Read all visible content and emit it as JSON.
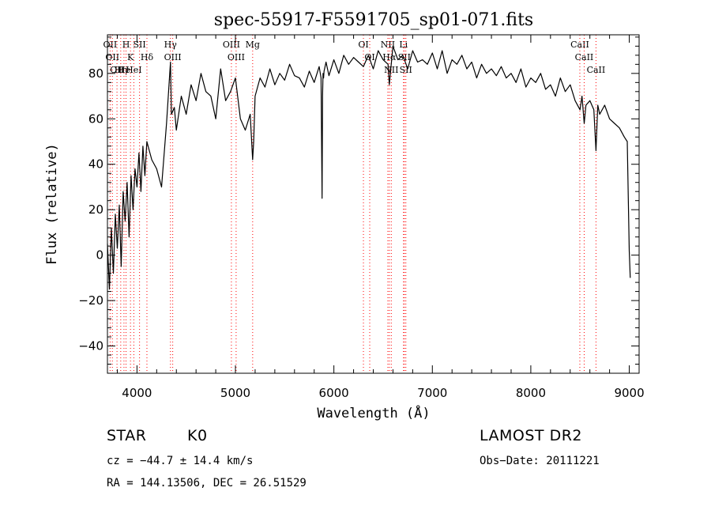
{
  "chart_data": {
    "type": "line",
    "title": "spec-55917-F5591705_sp01-071.fits",
    "xlabel": "Wavelength (Å)",
    "ylabel": "Flux (relative)",
    "xlim": [
      3700,
      9100
    ],
    "ylim": [
      -52,
      97
    ],
    "x_ticks": [
      {
        "v": 4000,
        "label": "4000"
      },
      {
        "v": 5000,
        "label": "5000"
      },
      {
        "v": 6000,
        "label": "6000"
      },
      {
        "v": 7000,
        "label": "7000"
      },
      {
        "v": 8000,
        "label": "8000"
      },
      {
        "v": 9000,
        "label": "9000"
      }
    ],
    "y_ticks": [
      {
        "v": -40,
        "label": "−40"
      },
      {
        "v": -20,
        "label": "−20"
      },
      {
        "v": 0,
        "label": "0"
      },
      {
        "v": 20,
        "label": "20"
      },
      {
        "v": 40,
        "label": "40"
      },
      {
        "v": 60,
        "label": "60"
      },
      {
        "v": 80,
        "label": "80"
      }
    ],
    "spectrum_color": "#000000",
    "line_marker_color": "#ff0000",
    "series": [
      {
        "x": [
          3700,
          3720,
          3740,
          3760,
          3780,
          3800,
          3820,
          3840,
          3860,
          3880,
          3900,
          3920,
          3940,
          3960,
          3980,
          4000,
          4020,
          4040,
          4060,
          4080,
          4100,
          4150,
          4200,
          4250,
          4300,
          4330,
          4340,
          4350,
          4380,
          4400,
          4450,
          4500,
          4550,
          4600,
          4650,
          4700,
          4750,
          4800,
          4850,
          4900,
          4950,
          5000,
          5050,
          5100,
          5150,
          5175,
          5185,
          5200,
          5250,
          5300,
          5350,
          5400,
          5450,
          5500,
          5550,
          5600,
          5650,
          5700,
          5750,
          5800,
          5850,
          5870,
          5880,
          5885,
          5890,
          5895,
          5900,
          5920,
          5950,
          6000,
          6050,
          6100,
          6150,
          6200,
          6250,
          6300,
          6350,
          6400,
          6450,
          6500,
          6550,
          6563,
          6600,
          6650,
          6700,
          6750,
          6800,
          6850,
          6900,
          6950,
          7000,
          7050,
          7100,
          7150,
          7200,
          7250,
          7300,
          7350,
          7400,
          7450,
          7500,
          7550,
          7600,
          7650,
          7700,
          7750,
          7800,
          7850,
          7900,
          7950,
          8000,
          8050,
          8100,
          8150,
          8200,
          8250,
          8300,
          8350,
          8400,
          8450,
          8500,
          8520,
          8542,
          8560,
          8600,
          8640,
          8662,
          8680,
          8700,
          8750,
          8800,
          8850,
          8900,
          8950,
          8980,
          9000,
          9010
        ],
        "y": [
          5,
          -15,
          12,
          -8,
          18,
          3,
          22,
          -5,
          28,
          15,
          32,
          8,
          35,
          20,
          38,
          30,
          45,
          28,
          48,
          35,
          50,
          42,
          38,
          30,
          58,
          78,
          85,
          62,
          65,
          55,
          70,
          62,
          75,
          68,
          80,
          72,
          70,
          60,
          82,
          68,
          72,
          78,
          60,
          55,
          62,
          42,
          50,
          70,
          78,
          74,
          82,
          75,
          80,
          77,
          84,
          79,
          78,
          74,
          81,
          76,
          83,
          78,
          25,
          70,
          80,
          78,
          81,
          85,
          79,
          86,
          80,
          88,
          84,
          87,
          85,
          83,
          88,
          82,
          90,
          86,
          84,
          75,
          92,
          86,
          88,
          82,
          90,
          85,
          86,
          84,
          89,
          82,
          90,
          80,
          86,
          84,
          88,
          82,
          85,
          78,
          84,
          80,
          82,
          79,
          83,
          78,
          80,
          76,
          82,
          74,
          78,
          76,
          80,
          73,
          75,
          70,
          78,
          72,
          75,
          68,
          64,
          70,
          58,
          66,
          68,
          64,
          46,
          66,
          62,
          66,
          60,
          58,
          56,
          52,
          50,
          2,
          -10
        ]
      }
    ],
    "line_ids": [
      {
        "w": 3727,
        "label": "OII"
      },
      {
        "w": 3750,
        "label": "OII"
      },
      {
        "w": 3797,
        "label": "OII"
      },
      {
        "w": 3835,
        "label": "Hη"
      },
      {
        "w": 3868,
        "label": "He"
      },
      {
        "w": 3889,
        "label": "H"
      },
      {
        "w": 3934,
        "label": "K"
      },
      {
        "w": 3968,
        "label": "HeI"
      },
      {
        "w": 4026,
        "label": "SII"
      },
      {
        "w": 4101,
        "label": "Hδ"
      },
      {
        "w": 4340,
        "label": "Hγ"
      },
      {
        "w": 4363,
        "label": "OIII"
      },
      {
        "w": 4959,
        "label": "OIII"
      },
      {
        "w": 5007,
        "label": "OIII"
      },
      {
        "w": 5175,
        "label": "Mg"
      },
      {
        "w": 6300,
        "label": "OI"
      },
      {
        "w": 6364,
        "label": "OI"
      },
      {
        "w": 6548,
        "label": "NII"
      },
      {
        "w": 6563,
        "label": "Hα"
      },
      {
        "w": 6583,
        "label": "NII"
      },
      {
        "w": 6716,
        "label": "SII"
      },
      {
        "w": 6707,
        "label": "Li"
      },
      {
        "w": 6731,
        "label": "SII"
      },
      {
        "w": 8498,
        "label": "CaII"
      },
      {
        "w": 8542,
        "label": "CaII"
      },
      {
        "w": 8662,
        "label": "CaII"
      }
    ]
  },
  "info": {
    "star_type": "STAR",
    "subclass": "K0",
    "survey": "LAMOST DR2",
    "cz": "cz = −44.7 ± 14.4 km/s",
    "obs_date": "Obs−Date: 20111221",
    "coords": "RA = 144.13506, DEC =  26.51529"
  }
}
